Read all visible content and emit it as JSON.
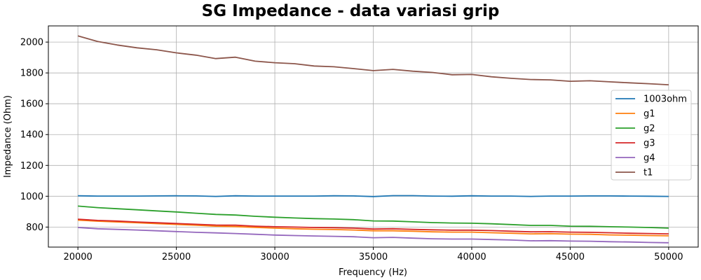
{
  "chart_data": {
    "type": "line",
    "title": "SG Impedance - data variasi grip",
    "xlabel": "Frequency (Hz)",
    "ylabel": "Impedance (Ohm)",
    "xlim": [
      18500,
      51500
    ],
    "ylim": [
      670,
      2105
    ],
    "xticks": [
      20000,
      25000,
      30000,
      35000,
      40000,
      45000,
      50000
    ],
    "yticks": [
      800,
      1000,
      1200,
      1400,
      1600,
      1800,
      2000
    ],
    "grid": true,
    "legend_position": "center-right",
    "x": [
      20000,
      21000,
      22000,
      23000,
      24000,
      25000,
      26000,
      27000,
      28000,
      29000,
      30000,
      31000,
      32000,
      33000,
      34000,
      35000,
      36000,
      37000,
      38000,
      39000,
      40000,
      41000,
      42000,
      43000,
      44000,
      45000,
      46000,
      47000,
      48000,
      49000,
      50000
    ],
    "series": [
      {
        "name": "1003ohm",
        "color": "#1f77b4",
        "values": [
          1003,
          1001,
          1001,
          1001,
          1002,
          1003,
          1002,
          999,
          1003,
          1001,
          1001,
          1001,
          1001,
          1003,
          1002,
          998,
          1004,
          1004,
          1001,
          1000,
          1003,
          1001,
          1001,
          999,
          1001,
          1001,
          1002,
          1002,
          1001,
          1000,
          999
        ]
      },
      {
        "name": "g1",
        "color": "#ff7f0e",
        "values": [
          845,
          838,
          833,
          828,
          822,
          817,
          812,
          806,
          803,
          798,
          793,
          789,
          786,
          784,
          781,
          776,
          776,
          773,
          769,
          767,
          767,
          763,
          760,
          756,
          757,
          754,
          753,
          749,
          747,
          745,
          743
        ]
      },
      {
        "name": "g2",
        "color": "#2ca02c",
        "values": [
          936,
          926,
          919,
          912,
          905,
          898,
          890,
          882,
          878,
          870,
          864,
          859,
          855,
          852,
          848,
          840,
          839,
          834,
          829,
          826,
          825,
          821,
          816,
          811,
          811,
          806,
          805,
          802,
          800,
          797,
          793
        ]
      },
      {
        "name": "g3",
        "color": "#d62728",
        "values": [
          851,
          843,
          839,
          833,
          828,
          823,
          818,
          813,
          812,
          806,
          802,
          800,
          797,
          796,
          793,
          787,
          789,
          785,
          782,
          780,
          780,
          777,
          773,
          769,
          770,
          767,
          766,
          763,
          760,
          758,
          756
        ]
      },
      {
        "name": "g4",
        "color": "#9467bd",
        "values": [
          797,
          789,
          785,
          781,
          776,
          771,
          766,
          762,
          758,
          753,
          748,
          745,
          742,
          740,
          737,
          731,
          733,
          728,
          724,
          722,
          722,
          719,
          716,
          711,
          712,
          709,
          708,
          705,
          703,
          700,
          698
        ]
      },
      {
        "name": "t1",
        "color": "#8c564b",
        "values": [
          2040,
          2004,
          1981,
          1963,
          1950,
          1930,
          1915,
          1893,
          1902,
          1876,
          1866,
          1860,
          1845,
          1840,
          1828,
          1815,
          1823,
          1811,
          1803,
          1788,
          1790,
          1775,
          1765,
          1757,
          1755,
          1746,
          1749,
          1742,
          1736,
          1730,
          1723
        ]
      }
    ]
  }
}
